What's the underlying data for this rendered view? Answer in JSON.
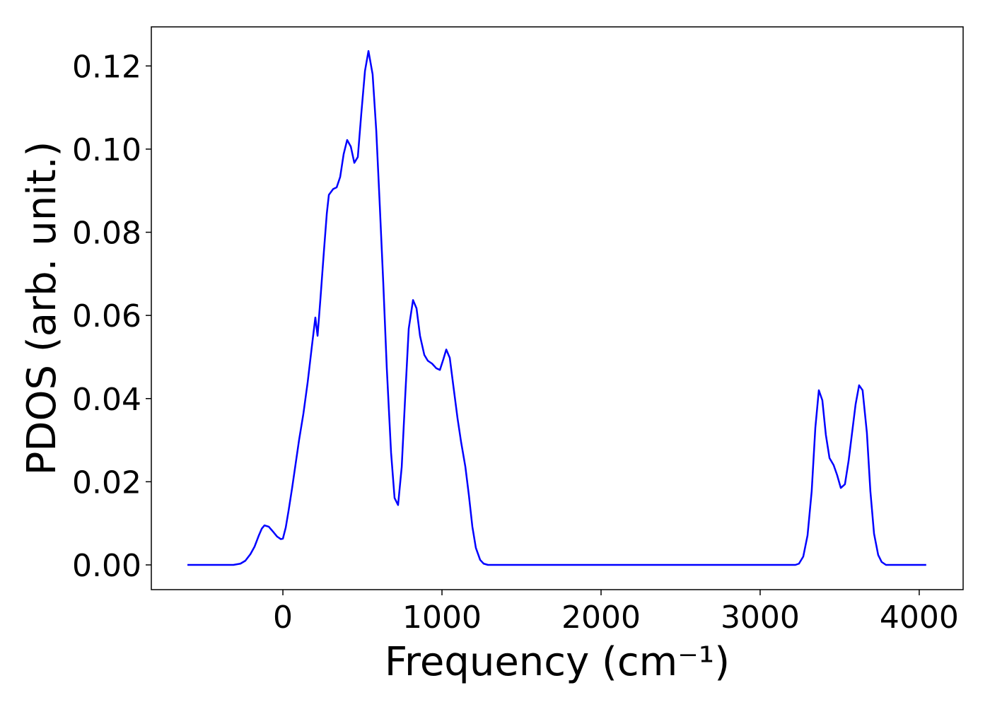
{
  "chart_data": {
    "type": "line",
    "xlabel": "Frequency (cm⁻¹)",
    "ylabel": "PDOS (arb. unit.)",
    "x": [
      -600,
      -311,
      -267,
      -236,
      -204,
      -178,
      -151,
      -133,
      -116,
      -89,
      -62,
      -36,
      -13,
      0,
      18,
      36,
      58,
      80,
      102,
      129,
      156,
      182,
      204,
      218,
      236,
      258,
      276,
      289,
      316,
      338,
      360,
      382,
      404,
      427,
      449,
      471,
      493,
      516,
      538,
      564,
      587,
      609,
      631,
      653,
      680,
      702,
      724,
      747,
      769,
      791,
      818,
      840,
      862,
      889,
      911,
      938,
      964,
      987,
      1009,
      1027,
      1049,
      1071,
      1098,
      1120,
      1147,
      1169,
      1191,
      1213,
      1240,
      1262,
      1289,
      3222,
      3244,
      3271,
      3298,
      3324,
      3347,
      3369,
      3391,
      3413,
      3436,
      3462,
      3484,
      3507,
      3533,
      3556,
      3578,
      3600,
      3622,
      3644,
      3671,
      3693,
      3716,
      3742,
      3764,
      3791,
      4044
    ],
    "series": [
      {
        "name": "PDOS",
        "color": "#0000ff",
        "values": [
          0,
          0,
          0.0003,
          0.001,
          0.0026,
          0.0044,
          0.0071,
          0.0087,
          0.0095,
          0.0092,
          0.008,
          0.0068,
          0.0062,
          0.0063,
          0.009,
          0.0131,
          0.0185,
          0.0243,
          0.0301,
          0.0364,
          0.044,
          0.0525,
          0.0595,
          0.0551,
          0.064,
          0.0755,
          0.0845,
          0.089,
          0.0904,
          0.0908,
          0.0933,
          0.0988,
          0.1022,
          0.1006,
          0.0967,
          0.0981,
          0.1086,
          0.1188,
          0.1236,
          0.118,
          0.1044,
          0.0865,
          0.0678,
          0.0474,
          0.027,
          0.0161,
          0.0144,
          0.0236,
          0.0406,
          0.0568,
          0.0637,
          0.0617,
          0.0551,
          0.0505,
          0.0491,
          0.0484,
          0.0473,
          0.0469,
          0.0495,
          0.0518,
          0.0498,
          0.0432,
          0.0352,
          0.0296,
          0.0236,
          0.0168,
          0.0092,
          0.0041,
          0.0012,
          0.0003,
          0,
          0,
          0.0003,
          0.002,
          0.0071,
          0.0177,
          0.033,
          0.042,
          0.0396,
          0.0313,
          0.0257,
          0.024,
          0.0216,
          0.0185,
          0.0194,
          0.025,
          0.0318,
          0.0386,
          0.0432,
          0.042,
          0.0318,
          0.0177,
          0.0075,
          0.0024,
          0.0007,
          0,
          0
        ]
      }
    ],
    "xlim": [
      -827,
      4276
    ],
    "xticks": [
      0,
      1000,
      2000,
      3000,
      4000
    ],
    "ylim": [
      -0.00595,
      0.1294
    ],
    "yticks": [
      {
        "value": 0,
        "label": "0.00"
      },
      0.02,
      0.04,
      0.06,
      0.08,
      {
        "value": 0.1,
        "label": "0.10"
      },
      0.12
    ],
    "grid": false
  }
}
